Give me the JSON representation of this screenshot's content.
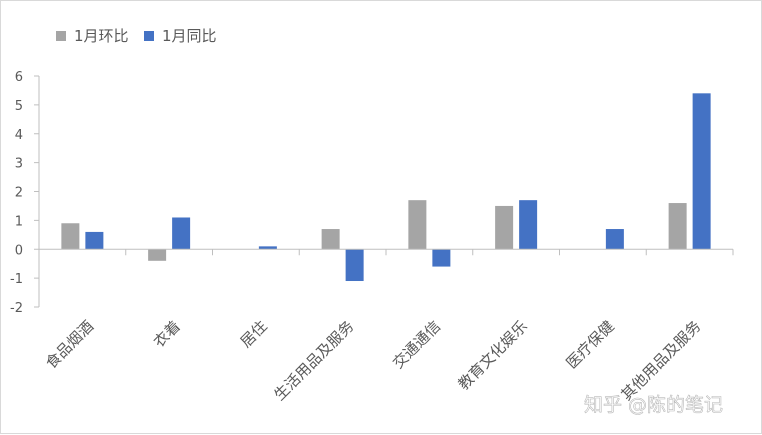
{
  "chart_data": {
    "type": "bar",
    "categories": [
      "食品烟酒",
      "衣着",
      "居住",
      "生活用品及服务",
      "交通通信",
      "教育文化娱乐",
      "医疗保健",
      "其他用品及服务"
    ],
    "series": [
      {
        "name": "1月环比",
        "color": "#a5a5a5",
        "values": [
          0.9,
          -0.4,
          0.0,
          0.7,
          1.7,
          1.5,
          0.0,
          1.6
        ]
      },
      {
        "name": "1月同比",
        "color": "#4472c4",
        "values": [
          0.6,
          1.1,
          0.1,
          -1.1,
          -0.6,
          1.7,
          0.7,
          5.4
        ]
      }
    ],
    "ylim": [
      -2,
      6
    ],
    "yticks": [
      6,
      5,
      4,
      3,
      2,
      1,
      0,
      -1,
      -2
    ],
    "grid": false,
    "legend_position": "top-left"
  },
  "watermark": "知乎 @陈的笔记"
}
